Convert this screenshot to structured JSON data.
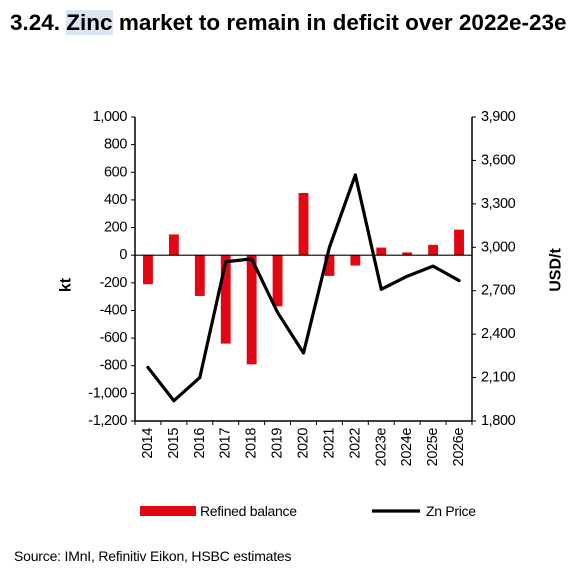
{
  "title": {
    "prefix": "3.24. ",
    "highlight": "Zinc",
    "suffix": " market to remain in deficit over 2022e-23e"
  },
  "source": "Source: IMnI, Refinitiv Eikon, HSBC estimates",
  "chart_data": {
    "type": "bar",
    "categories": [
      "2014",
      "2015",
      "2016",
      "2017",
      "2018",
      "2019",
      "2020",
      "2021",
      "2022",
      "2023e",
      "2024e",
      "2025e",
      "2026e"
    ],
    "series": [
      {
        "name": "Refined balance",
        "type": "bar",
        "axis": "left",
        "values": [
          -210,
          150,
          -295,
          -640,
          -790,
          -370,
          450,
          -150,
          -75,
          55,
          20,
          75,
          185
        ],
        "color": "#e30613"
      },
      {
        "name": "Zn Price",
        "type": "line",
        "axis": "right",
        "values": [
          2170,
          1940,
          2100,
          2900,
          2920,
          2550,
          2270,
          3000,
          3500,
          2710,
          2800,
          2870,
          2770
        ],
        "color": "#000000"
      }
    ],
    "ylabel": "kt",
    "y2label": "USD/t",
    "ylim": [
      -1200,
      1000
    ],
    "y_ticks": [
      "1,000",
      "800",
      "600",
      "400",
      "200",
      "0",
      "-200",
      "-400",
      "-600",
      "-800",
      "-1,000",
      "-1,200"
    ],
    "y2lim": [
      1800,
      3900
    ],
    "y2_ticks": [
      "3,900",
      "3,600",
      "3,300",
      "3,000",
      "2,700",
      "2,400",
      "2,100",
      "1,800"
    ],
    "grid": false,
    "legend_position": "bottom"
  }
}
